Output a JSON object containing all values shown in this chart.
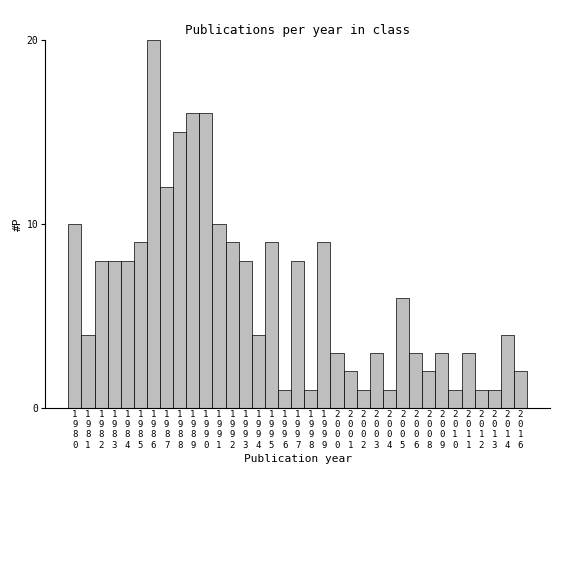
{
  "title": "Publications per year in class",
  "xlabel": "Publication year",
  "ylabel": "#P",
  "bar_color": "#bebebe",
  "edge_color": "#000000",
  "background_color": "#ffffff",
  "years": [
    "1980",
    "1981",
    "1982",
    "1983",
    "1984",
    "1985",
    "1986",
    "1987",
    "1988",
    "1989",
    "1990",
    "1991",
    "1992",
    "1993",
    "1994",
    "1995",
    "1996",
    "1997",
    "1998",
    "1999",
    "2000",
    "2001",
    "2002",
    "2003",
    "2004",
    "2005",
    "2006",
    "2008",
    "2009",
    "2010",
    "2011",
    "2012",
    "2013",
    "2014",
    "2016"
  ],
  "values": [
    10,
    4,
    8,
    8,
    8,
    9,
    20,
    12,
    15,
    16,
    16,
    10,
    9,
    8,
    4,
    9,
    1,
    8,
    1,
    9,
    3,
    2,
    1,
    3,
    1,
    6,
    3,
    2,
    3,
    1,
    3,
    1,
    1,
    4,
    2
  ],
  "ylim": [
    0,
    20
  ],
  "yticks": [
    0,
    10,
    20
  ],
  "title_fontsize": 9,
  "label_fontsize": 8,
  "tick_fontsize": 6.5
}
